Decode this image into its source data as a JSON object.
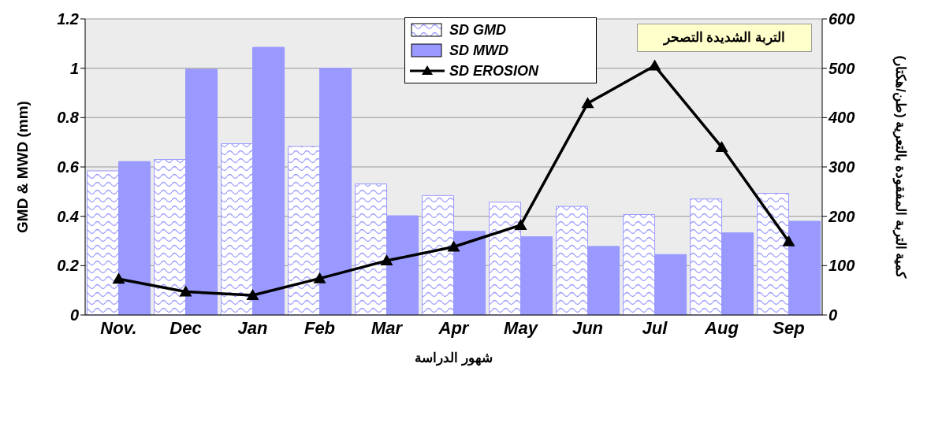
{
  "chart_data": {
    "type": "bar",
    "xlabel": "شهور الدراسة",
    "ylabel": "GMD & MWD (mm)",
    "y2label": "كمية التربة المفقودة بالتعرية (طن/هكتار)",
    "annotations": [
      "التربة الشديدة التصحر"
    ],
    "categories": [
      "Nov.",
      "Dec",
      "Jan",
      "Feb",
      "Mar",
      "Apr",
      "May",
      "Jun",
      "Jul",
      "Aug",
      "Sep"
    ],
    "series": [
      {
        "name": "SD GMD",
        "color": "#9999ff",
        "values": [
          0.584,
          0.63,
          0.694,
          0.683,
          0.531,
          0.484,
          0.457,
          0.44,
          0.407,
          0.47,
          0.493
        ]
      },
      {
        "name": "SD MWD",
        "color": "#9999ff",
        "values": [
          0.622,
          0.996,
          1.085,
          1.0,
          0.402,
          0.339,
          0.317,
          0.278,
          0.245,
          0.333,
          0.38
        ]
      },
      {
        "name": "SD EROSION",
        "type": "line",
        "axis": "y2",
        "color": "#000000",
        "marker": "triangle",
        "values": [
          73,
          47,
          40,
          74,
          110,
          138,
          182,
          429,
          505,
          340,
          149
        ]
      }
    ],
    "ylim": [
      0,
      1.2
    ],
    "yticks": [
      {
        "value": 0,
        "label": "0"
      },
      {
        "value": 0.2,
        "label": "0.2"
      },
      {
        "value": 0.4,
        "label": "0.4"
      },
      {
        "value": 0.6,
        "label": "0.6"
      },
      {
        "value": 0.8,
        "label": "0.8"
      },
      {
        "value": 1,
        "label": "1"
      },
      {
        "value": 1.2,
        "label": "1.2"
      }
    ],
    "y2lim": [
      0,
      600
    ],
    "y2ticks": [
      0,
      100,
      200,
      300,
      400,
      500,
      600
    ],
    "grid": "y",
    "legend": "top"
  }
}
